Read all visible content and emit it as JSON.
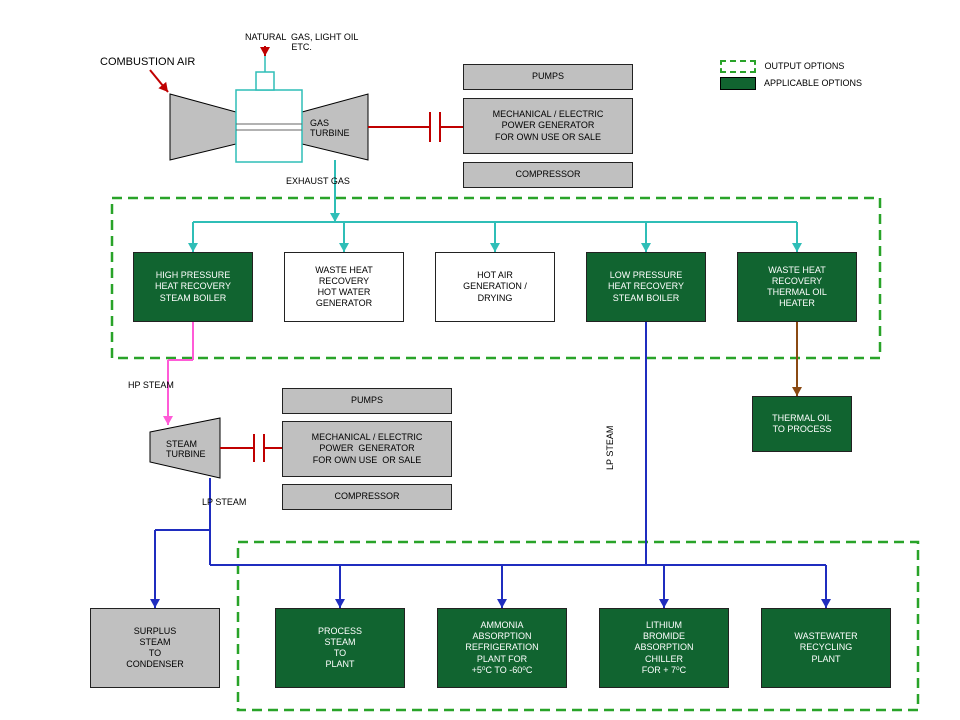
{
  "legend": {
    "output": "OUTPUT OPTIONS",
    "applicable": "APPLICABLE OPTIONS"
  },
  "labels": {
    "combustion_air": "COMBUSTION AIR",
    "natural_gas": "NATURAL  GAS, LIGHT OIL\nETC.",
    "exhaust_gas": "EXHAUST  GAS",
    "hp_steam": "HP STEAM",
    "lp_steam_left": "LP STEAM",
    "lp_steam_right": "LP STEAM",
    "gas_turbine": "GAS\nTURBINE",
    "steam_turbine": "STEAM\nTURBINE"
  },
  "boxes": {
    "pumps1": "PUMPS",
    "gen1": "MECHANICAL / ELECTRIC\nPOWER GENERATOR\nFOR OWN USE OR SALE",
    "comp1": "COMPRESSOR",
    "hp_boiler": "HIGH PRESSURE\nHEAT RECOVERY\nSTEAM BOILER",
    "whr_hw": "WASTE HEAT\nRECOVERY\nHOT WATER\nGENERATOR",
    "hot_air": "HOT AIR\nGENERATION /\nDRYING",
    "lp_boiler": "LOW PRESSURE\nHEAT RECOVERY\nSTEAM BOILER",
    "whr_th": "WASTE HEAT\nRECOVERY\nTHERMAL OIL\nHEATER",
    "thermal_oil": "THERMAL OIL\nTO PROCESS",
    "pumps2": "PUMPS",
    "gen2": "MECHANICAL / ELECTRIC\nPOWER  GENERATOR\nFOR OWN USE  OR SALE",
    "comp2": "COMPRESSOR",
    "surplus": "SURPLUS\nSTEAM\nTO\nCONDENSER",
    "process_steam": "PROCESS\nSTEAM\nTO\nPLANT",
    "ammonia": "AMMONIA\nABSORPTION\nREFRIGERATION\nPLANT FOR\n+5⁰C TO -60⁰C",
    "libr": "LITHIUM\nBROMIDE\nABSORPTION\nCHILLER\nFOR + 7⁰C",
    "wastewater": "WASTEWATER\nRECYCLING\nPLANT"
  },
  "colors": {
    "green": "#116430",
    "grey": "#c0c0c0",
    "dash": "#29a329",
    "red": "#c00000",
    "teal": "#2fbeb7",
    "pink": "#ff5bd7",
    "blue": "#1f2dbf",
    "brown": "#8a4a13"
  }
}
